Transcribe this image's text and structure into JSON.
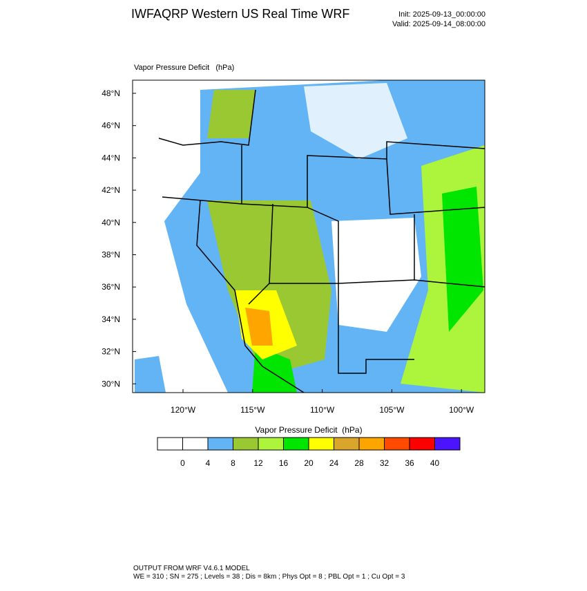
{
  "header": {
    "title": "IWFAQRP Western US Real Time WRF",
    "init": "Init: 2025-09-13_00:00:00",
    "valid": "Valid: 2025-09-14_08:00:00"
  },
  "map": {
    "title": "Vapor Pressure Deficit   (hPa)",
    "lat_labels": [
      "48°N",
      "46°N",
      "44°N",
      "42°N",
      "40°N",
      "38°N",
      "36°N",
      "34°N",
      "32°N",
      "30°N"
    ],
    "lon_labels": [
      "120°W",
      "115°W",
      "110°W",
      "105°W",
      "100°W"
    ]
  },
  "colorbar": {
    "title": "Vapor Pressure Deficit  (hPa)",
    "colors": [
      "#ffffff",
      "#ffffff",
      "#63b4f5",
      "#9ac832",
      "#adf53c",
      "#00e600",
      "#ffff00",
      "#d9a52a",
      "#ffa500",
      "#ff4a00",
      "#ff0000",
      "#4a14ff"
    ],
    "labels": [
      0,
      4,
      8,
      12,
      16,
      20,
      24,
      28,
      32,
      36,
      40
    ]
  },
  "footer": {
    "line1": "OUTPUT FROM WRF V4.6.1 MODEL",
    "line2": "WE = 310 ; SN = 275 ; Levels = 38 ; Dis = 8km ; Phys Opt = 8 ; PBL Opt = 1 ; Cu Opt = 3"
  }
}
